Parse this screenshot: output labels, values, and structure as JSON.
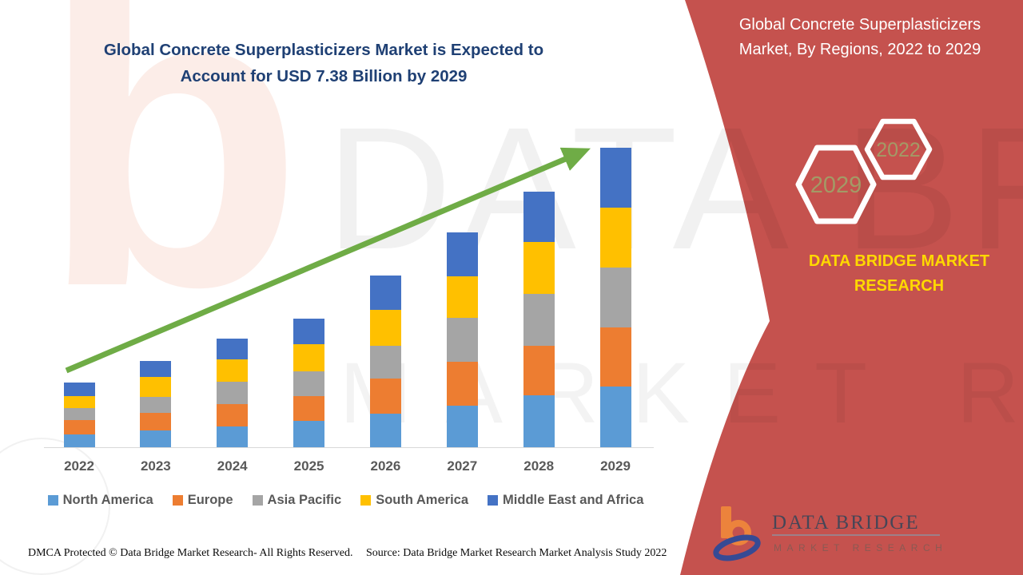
{
  "header": {
    "title_line1": "Global Concrete Superplasticizers Market is Expected to",
    "title_line2": "Account for USD 7.38 Billion by 2029"
  },
  "right_panel": {
    "title_line1": "Global Concrete Superplasticizers",
    "title_line2": "Market, By Regions, 2022 to 2029",
    "hexagon_top_year": "2022",
    "hexagon_bottom_year": "2029",
    "brand_line1": "DATA BRIDGE MARKET",
    "brand_line2": "RESEARCH",
    "logo_name": "DATA BRIDGE",
    "logo_subtitle": "MARKET RESEARCH",
    "background_color": "#C5524E",
    "brand_text_color": "#FFD800",
    "hexagon_year_color": "#A39A66"
  },
  "watermark": {
    "big_text": "DATA BRIDGE",
    "row_text": "MARKET RESEARCH"
  },
  "footer": {
    "dmca": "DMCA Protected © Data Bridge Market Research- All Rights Reserved.",
    "source": "Source: Data Bridge Market Research Market Analysis Study 2022"
  },
  "chart_data": {
    "type": "bar",
    "stacked": true,
    "title": "Global Concrete Superplasticizers Market, By Regions, 2022 to 2029",
    "unit": "USD Billion (estimated from bar heights; 2029 total stated as USD 7.38 Billion)",
    "categories": [
      "2022",
      "2023",
      "2024",
      "2025",
      "2026",
      "2027",
      "2028",
      "2029"
    ],
    "series": [
      {
        "name": "North America",
        "color": "#5B9BD5",
        "values": [
          0.32,
          0.41,
          0.51,
          0.65,
          0.83,
          1.03,
          1.27,
          1.49
        ]
      },
      {
        "name": "Europe",
        "color": "#ED7D31",
        "values": [
          0.35,
          0.44,
          0.56,
          0.61,
          0.87,
          1.07,
          1.23,
          1.46
        ]
      },
      {
        "name": "Asia Pacific",
        "color": "#A5A5A5",
        "values": [
          0.3,
          0.4,
          0.54,
          0.61,
          0.8,
          1.08,
          1.29,
          1.48
        ]
      },
      {
        "name": "South America",
        "color": "#FFC000",
        "values": [
          0.3,
          0.48,
          0.55,
          0.67,
          0.89,
          1.03,
          1.27,
          1.48
        ]
      },
      {
        "name": "Middle East and Africa",
        "color": "#4472C4",
        "values": [
          0.32,
          0.39,
          0.51,
          0.64,
          0.84,
          1.08,
          1.25,
          1.47
        ]
      }
    ],
    "totals_usd_billion": [
      1.59,
      2.12,
      2.67,
      3.18,
      4.23,
      5.29,
      6.31,
      7.38
    ],
    "expected_2029_total_usd_billion": 7.38,
    "legend_position": "bottom",
    "y_axis_visible": false,
    "grid": false,
    "annotations": [
      "green upward trend arrow from 2022 to 2029"
    ]
  }
}
